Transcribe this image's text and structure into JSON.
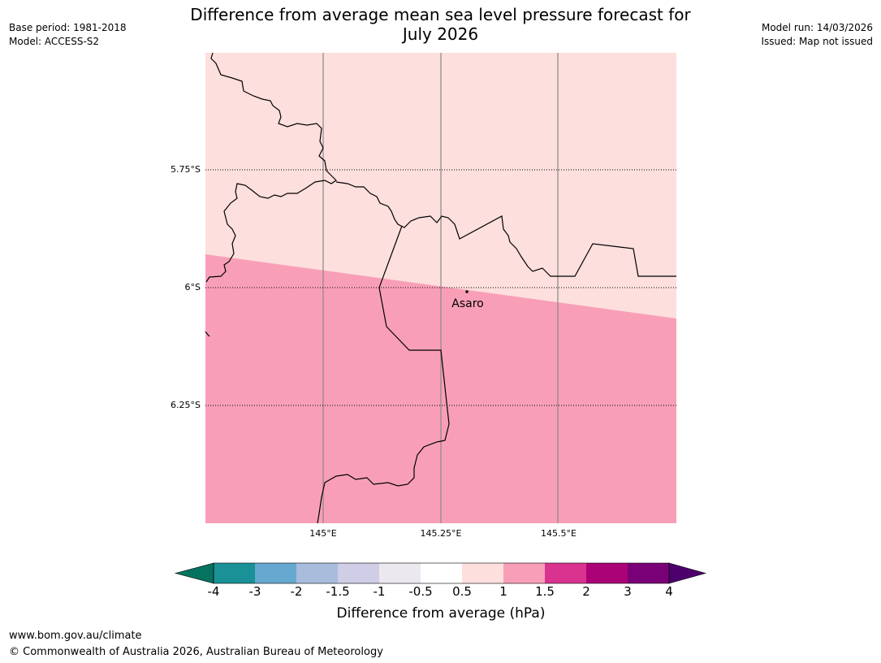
{
  "header": {
    "title_line1": "Difference from average mean sea level pressure forecast for",
    "title_line2": "July 2026",
    "base_period": "Base period: 1981-2018",
    "model": "Model: ACCESS-S2",
    "model_run": "Model run: 14/03/2026",
    "issued": "Issued: Map not issued"
  },
  "map": {
    "lat_labels": [
      "5.75°S",
      "6°S",
      "6.25°S"
    ],
    "lon_labels": [
      "145°E",
      "145.25°E",
      "145.5°E"
    ],
    "place": {
      "name": "Asaro"
    },
    "region_colors": {
      "upper": "#fddfdd",
      "lower": "#f89fb7"
    }
  },
  "legend": {
    "ticks": [
      "-4",
      "-3",
      "-2",
      "-1.5",
      "-1",
      "-0.5",
      "0.5",
      "1",
      "1.5",
      "2",
      "3",
      "4"
    ],
    "colors": [
      "#1a9196",
      "#66a8cf",
      "#a8bcdc",
      "#cfcee6",
      "#ebe8ef",
      "#ffffff",
      "#fddfdd",
      "#f89fb7",
      "#d9338f",
      "#ac0278",
      "#7a0078"
    ],
    "under_color": "#05735f",
    "over_color": "#4d006b",
    "title": "Difference from average (hPa)"
  },
  "footer": {
    "url": "www.bom.gov.au/climate",
    "copyright": "© Commonwealth of Australia 2026, Australian Bureau of Meteorology"
  }
}
